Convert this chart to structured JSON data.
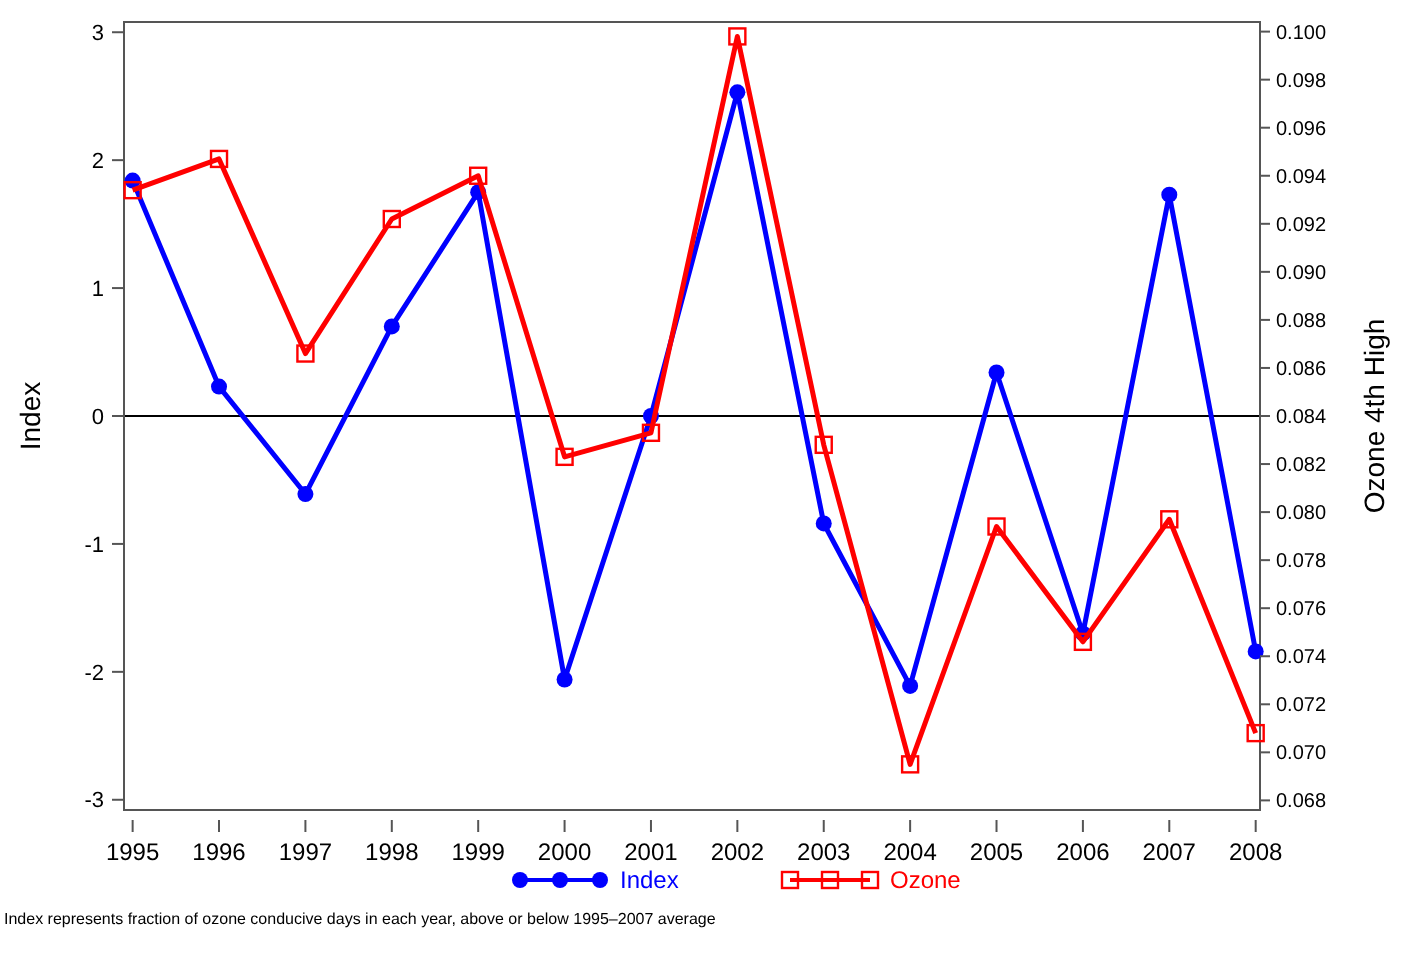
{
  "chart_data": {
    "type": "line",
    "xlabel": null,
    "ylabel": "Index",
    "y2label": "Ozone 4th High",
    "x": [
      1995,
      1996,
      1997,
      1998,
      1999,
      2000,
      2001,
      2002,
      2003,
      2004,
      2005,
      2006,
      2007,
      2008
    ],
    "xlim": [
      1994.9,
      2008.05
    ],
    "xticks": [
      1995,
      1996,
      1997,
      1998,
      1999,
      2000,
      2001,
      2002,
      2003,
      2004,
      2005,
      2006,
      2007,
      2008
    ],
    "ylim": [
      -3.08,
      3.08
    ],
    "yticks": [
      -3,
      -2,
      -1,
      0,
      1,
      2,
      3
    ],
    "y2lim": [
      0.0676,
      0.1004
    ],
    "y2ticks": [
      {
        "value": 0.068,
        "label": "0.068"
      },
      {
        "value": 0.07,
        "label": "0.070"
      },
      {
        "value": 0.072,
        "label": "0.072"
      },
      {
        "value": 0.074,
        "label": "0.074"
      },
      {
        "value": 0.076,
        "label": "0.076"
      },
      {
        "value": 0.078,
        "label": "0.078"
      },
      {
        "value": 0.08,
        "label": "0.080"
      },
      {
        "value": 0.082,
        "label": "0.082"
      },
      {
        "value": 0.084,
        "label": "0.084"
      },
      {
        "value": 0.086,
        "label": "0.086"
      },
      {
        "value": 0.088,
        "label": "0.088"
      },
      {
        "value": 0.09,
        "label": "0.090"
      },
      {
        "value": 0.092,
        "label": "0.092"
      },
      {
        "value": 0.094,
        "label": "0.094"
      },
      {
        "value": 0.096,
        "label": "0.096"
      },
      {
        "value": 0.098,
        "label": "0.098"
      },
      {
        "value": 0.1,
        "label": "0.100"
      }
    ],
    "series": [
      {
        "name": "Index",
        "color": "#0000ff",
        "marker": "circle",
        "values": [
          1.84,
          0.23,
          -0.61,
          0.7,
          1.75,
          -2.06,
          0.0,
          2.53,
          -0.84,
          -2.11,
          0.34,
          -1.7,
          1.73,
          -1.84
        ]
      },
      {
        "name": "Ozone",
        "color": "#ff0000",
        "marker": "square",
        "axis": "y2",
        "values": [
          0.0934,
          0.0947,
          0.0866,
          0.0922,
          0.094,
          0.0823,
          0.0833,
          0.0998,
          0.0828,
          0.0695,
          0.0794,
          0.0746,
          0.0797,
          0.0708
        ]
      }
    ],
    "ref_lines": [
      {
        "axis": "y",
        "value": 0,
        "color": "#000000"
      }
    ],
    "legend": "bottom",
    "grid": false,
    "annotations": [
      "Index represents fraction of ozone conducive days in each year, above or below 1995–2007 average"
    ]
  }
}
